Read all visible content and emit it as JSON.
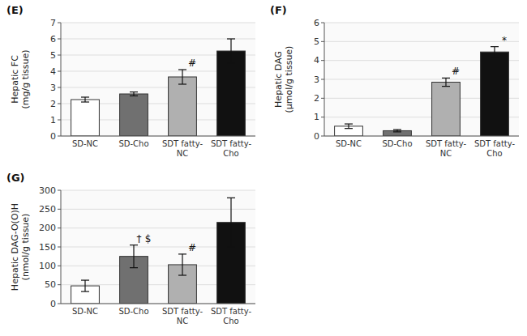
{
  "chart_data": [
    {
      "type": "bar",
      "title": "(E)",
      "ylabel": "Hepatic FC\n(mg/g tissue)",
      "categories": [
        "SD-NC",
        "SD-Cho",
        "SDT fatty-\nNC",
        "SDT fatty-\nCho"
      ],
      "values": [
        2.25,
        2.6,
        3.65,
        5.25
      ],
      "errors": [
        0.15,
        0.12,
        0.45,
        0.75
      ],
      "colors": [
        "white",
        "#707070",
        "#b0b0b0",
        "#111111"
      ],
      "ylim": [
        0,
        7
      ],
      "yticks": [
        0,
        1,
        2,
        3,
        4,
        5,
        6,
        7
      ],
      "grid": true,
      "annotations": [
        {
          "text": "#",
          "index": 2
        }
      ]
    },
    {
      "type": "bar",
      "title": "(F)",
      "ylabel": "Hepatic DAG\n(μmol/g tissue)",
      "categories": [
        "SD-NC",
        "SD-Cho",
        "SDT fatty-\nNC",
        "SDT fatty-\nCho"
      ],
      "values": [
        0.52,
        0.28,
        2.85,
        4.45
      ],
      "errors": [
        0.12,
        0.06,
        0.22,
        0.28
      ],
      "colors": [
        "white",
        "#707070",
        "#b0b0b0",
        "#111111"
      ],
      "ylim": [
        0,
        6
      ],
      "yticks": [
        0,
        1,
        2,
        3,
        4,
        5,
        6
      ],
      "grid": true,
      "annotations": [
        {
          "text": "#",
          "index": 2
        },
        {
          "text": "*",
          "index": 3
        }
      ]
    },
    {
      "type": "bar",
      "title": "(G)",
      "ylabel": "Hepatic DAG-O(O)H\n(nmol/g tissue)",
      "categories": [
        "SD-NC",
        "SD-Cho",
        "SDT fatty-\nNC",
        "SDT fatty-\nCho"
      ],
      "values": [
        47,
        125,
        103,
        215
      ],
      "errors": [
        15,
        30,
        28,
        65
      ],
      "colors": [
        "white",
        "#707070",
        "#b0b0b0",
        "#111111"
      ],
      "ylim": [
        0,
        300
      ],
      "yticks": [
        0,
        50,
        100,
        150,
        200,
        250,
        300
      ],
      "grid": true,
      "annotations": [
        {
          "text": "†",
          "index": 1
        },
        {
          "text": "$",
          "index": 1
        },
        {
          "text": "#",
          "index": 2
        }
      ]
    }
  ]
}
